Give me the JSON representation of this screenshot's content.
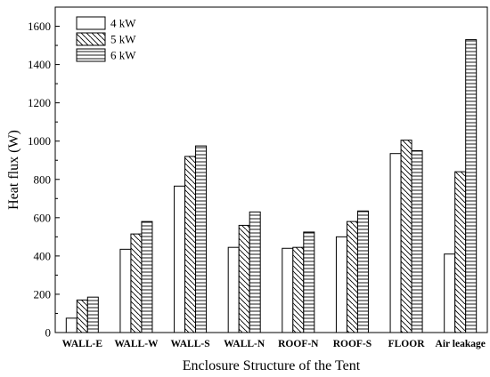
{
  "chart_data": {
    "type": "bar",
    "xlabel": "Enclosure Structure of the Tent",
    "ylabel": "Heat flux (W)",
    "ylim": [
      0,
      1700
    ],
    "yticks": [
      0,
      200,
      400,
      600,
      800,
      1000,
      1200,
      1400,
      1600
    ],
    "legend_position": "top-left",
    "grid": false,
    "categories": [
      "WALL-E",
      "WALL-W",
      "WALL-S",
      "WALL-N",
      "ROOF-N",
      "ROOF-S",
      "FLOOR",
      "Air leakage"
    ],
    "series": [
      {
        "name": "4 kW",
        "pattern": "none",
        "values": [
          75,
          435,
          765,
          445,
          440,
          500,
          935,
          410
        ]
      },
      {
        "name": "5 kW",
        "pattern": "diagonal-hatch",
        "values": [
          170,
          515,
          920,
          560,
          445,
          580,
          1005,
          840
        ]
      },
      {
        "name": "6 kW",
        "pattern": "horizontal-lines",
        "values": [
          185,
          580,
          975,
          630,
          525,
          635,
          950,
          1530
        ]
      }
    ]
  }
}
